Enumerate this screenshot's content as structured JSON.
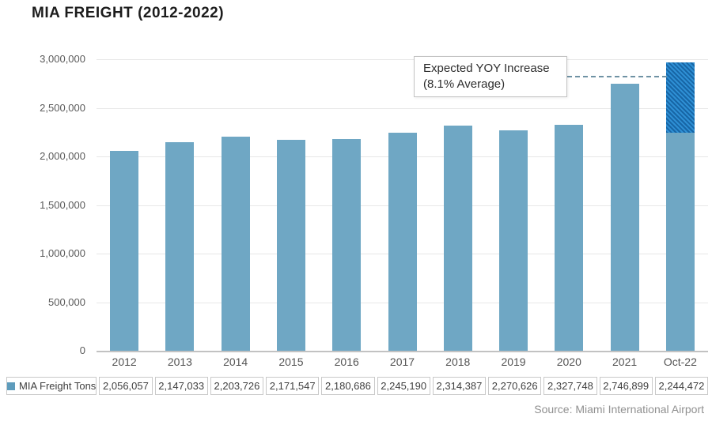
{
  "page": {
    "title": "MIA FREIGHT (2012-2022)",
    "source": "Source: Miami International Airport"
  },
  "annotation": {
    "line1": "Expected YOY Increase",
    "line2": "(8.1% Average)"
  },
  "legend": {
    "series_label": "MIA Freight Tons"
  },
  "colors": {
    "bar": "#6fa7c4",
    "hatch_light": "#2e8fd4",
    "hatch_dark": "#1766a6",
    "dash_line": "#6f92a4",
    "gridline": "#e7e7e7",
    "axis_line": "#c2c2c2"
  },
  "chart_data": {
    "type": "bar",
    "title": "MIA FREIGHT (2012-2022)",
    "categories": [
      "2012",
      "2013",
      "2014",
      "2015",
      "2016",
      "2017",
      "2018",
      "2019",
      "2020",
      "2021",
      "Oct-22"
    ],
    "series": [
      {
        "name": "MIA Freight Tons",
        "values": [
          2056057,
          2147033,
          2203726,
          2171547,
          2180686,
          2245190,
          2314387,
          2270626,
          2327748,
          2746899,
          2244472
        ],
        "values_display": [
          "2,056,057",
          "2,147,033",
          "2,203,726",
          "2,171,547",
          "2,180,686",
          "2,245,190",
          "2,314,387",
          "2,270,626",
          "2,327,748",
          "2,746,899",
          "2,244,472"
        ]
      }
    ],
    "expected_segment": {
      "category": "Oct-22",
      "from": 2244472,
      "to": 2969398,
      "style": "hatched",
      "label": "Expected YOY Increase (8.1% Average)"
    },
    "xlabel": "",
    "ylabel": "",
    "ylim": [
      0,
      3000000
    ],
    "yticks": [
      0,
      500000,
      1000000,
      1500000,
      2000000,
      2500000,
      3000000
    ],
    "ytick_labels": [
      "0",
      "500,000",
      "1,000,000",
      "1,500,000",
      "2,000,000",
      "2,500,000",
      "3,000,000"
    ],
    "grid": "horizontal",
    "legend_position": "bottom-table"
  }
}
